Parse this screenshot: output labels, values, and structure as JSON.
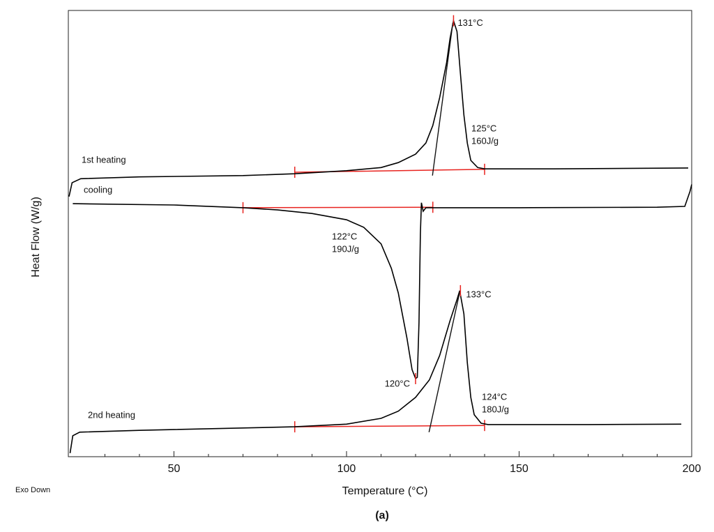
{
  "chart_data": {
    "type": "line",
    "xlabel": "Temperature (°C)",
    "ylabel": "Heat Flow (W/g)",
    "note": "Exo Down",
    "caption": "(a)",
    "xlim": [
      19.4,
      200
    ],
    "ylim": [
      0,
      100
    ],
    "xticks": [
      50,
      100,
      150,
      200
    ],
    "xminorticks": [
      30,
      40,
      60,
      70,
      80,
      90,
      110,
      120,
      130,
      140,
      160,
      170,
      180,
      190
    ],
    "series": [
      {
        "name": "1st heating",
        "color": "#000000",
        "x": [
          19.6,
          20.5,
          23,
          40,
          70,
          85,
          100,
          110,
          115,
          120,
          123,
          125,
          127,
          129,
          130,
          131,
          132,
          133,
          134,
          135,
          136,
          138,
          140,
          160,
          199
        ],
        "values": [
          58.3,
          61.4,
          62.3,
          62.7,
          63.0,
          63.4,
          64.1,
          64.8,
          65.9,
          67.8,
          70.3,
          74.2,
          80.5,
          88.3,
          93.8,
          97.7,
          95.3,
          85.9,
          76.6,
          70.3,
          66.4,
          64.8,
          64.5,
          64.5,
          64.7
        ]
      },
      {
        "name": "cooling",
        "color": "#000000",
        "x": [
          20.7,
          50,
          70,
          80,
          90,
          100,
          105,
          110,
          113,
          115,
          117.5,
          119,
          120,
          120.5,
          121,
          121.4,
          121.7,
          122.2,
          123,
          150,
          190,
          198,
          199.5,
          200
        ],
        "values": [
          56.7,
          56.4,
          55.8,
          55.3,
          54.5,
          53.1,
          51.4,
          47.7,
          42.2,
          36.7,
          26.6,
          19.5,
          17.5,
          17.8,
          30,
          50,
          56.9,
          55.0,
          55.8,
          55.8,
          55.9,
          56.1,
          59.4,
          61
        ]
      },
      {
        "name": "2nd heating",
        "color": "#000000",
        "x": [
          19.9,
          20.7,
          22.7,
          40,
          85,
          100,
          110,
          115,
          120,
          124,
          127,
          130,
          132,
          132.8,
          134,
          135,
          136,
          137,
          139,
          141,
          170,
          197
        ],
        "values": [
          0.8,
          4.7,
          5.5,
          5.9,
          6.7,
          7.3,
          8.6,
          10.2,
          13.3,
          17.2,
          22.7,
          30.5,
          35.2,
          37.2,
          32.0,
          21.1,
          13.3,
          9.4,
          7.5,
          7.2,
          7.2,
          7.3
        ]
      }
    ],
    "baselines": [
      {
        "x": [
          85,
          140
        ],
        "y": [
          63.75,
          64.4
        ]
      },
      {
        "x": [
          70,
          125
        ],
        "y": [
          55.8,
          55.9
        ]
      },
      {
        "x": [
          85,
          140
        ],
        "y": [
          6.7,
          7.0
        ]
      }
    ],
    "tangents": [
      {
        "x": [
          124.9,
          130.8
        ],
        "y": [
          63.0,
          97.2
        ]
      },
      {
        "x": [
          123.9,
          132.8
        ],
        "y": [
          5.5,
          36.9
        ]
      }
    ],
    "peaks": [
      {
        "x": 131,
        "y": 97.7,
        "label": "131°C"
      },
      {
        "x": 120,
        "y": 17.5,
        "label": "120°C"
      },
      {
        "x": 133,
        "y": 37.2,
        "label": "133°C"
      }
    ],
    "annotations": [
      "125°C",
      "160J/g",
      "122°C",
      "190J/g",
      "124°C",
      "180J/g"
    ],
    "baseline_color": "#e8231f"
  }
}
